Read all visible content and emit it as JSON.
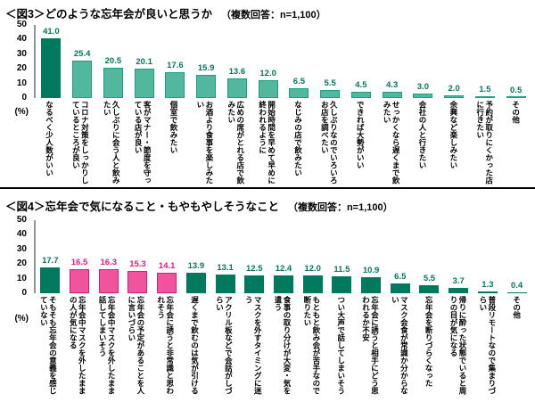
{
  "colors": {
    "bar_dark": "#007a5e",
    "bar_light_fill": "#52b89d",
    "bar_light_border": "#1b9e83",
    "bar_pink_fill": "#ef549c",
    "bar_pink_border": "#dd1979",
    "value_green": "#00795c",
    "value_pink": "#e91a80",
    "axis": "#8f9699",
    "divider": "#000000"
  },
  "chart_data": [
    {
      "id": "fig3",
      "type": "bar",
      "title": "＜図3＞どのような忘年会が良いと思うか",
      "note": "（複数回答：n=1,100）",
      "y_unit": "(%)",
      "ylim": [
        0,
        50
      ],
      "yticks": [
        50,
        40,
        30,
        20,
        10,
        0
      ],
      "grid": false,
      "legend_position": "none",
      "categories": [
        "なるべく少人数がいい",
        "コロナ対策をしっかりしているところが良い",
        "久しぶりに会う人と飲みたい",
        "客がマナー・節度を守っている店が良い",
        "個室で飲みたい",
        "お酒より食事を楽しみたい",
        "広めの席がとれる店で飲みたい",
        "開始時間を早めて早めに終われるように",
        "なじみの店で飲みたい",
        "久しぶりなのでいろいろお店を調べたい",
        "できれば大勢がいい",
        "せっかくなら遅くまで飲みたい",
        "会社の人と行きたい",
        "余興など楽しみたい",
        "予約が取りにくかった店に行きたい",
        "その他"
      ],
      "values": [
        41.0,
        25.4,
        20.5,
        20.1,
        17.6,
        15.9,
        13.6,
        12.0,
        6.5,
        5.5,
        4.5,
        4.3,
        3.0,
        2.0,
        1.5,
        0.5
      ],
      "bar_styles": [
        "dark",
        "light",
        "light",
        "light",
        "light",
        "light",
        "light",
        "light",
        "light",
        "light",
        "light",
        "light",
        "light",
        "light",
        "light",
        "light"
      ]
    },
    {
      "id": "fig4",
      "type": "bar",
      "title": "＜図4＞忘年会で気になること・もやもやしそうなこと",
      "note": "（複数回答：n=1,100）",
      "y_unit": "(%)",
      "ylim": [
        0,
        50
      ],
      "yticks": [
        50,
        40,
        30,
        20,
        10,
        0
      ],
      "grid": false,
      "legend_position": "none",
      "categories": [
        "そもそも忘年会の意義を感じていない",
        "忘年会中マスクを外したままの人が気になる",
        "忘年会中マスクを外したまま話してしまいそう",
        "忘年会の予定があることを人に言いづらい",
        "忘年会に誘うと非常識と思われそう",
        "遅くまで飲むのは気が引ける",
        "アクリル板などで会話がしづらい",
        "マスクを外すタイミングに迷う",
        "食事の取り分けが大変・気を遣う",
        "もともと飲み会が苦手なので断りたい",
        "つい大声で話してしまいそう",
        "忘年会に誘うと相手にどう思われるか不安",
        "マスク会食が常識か分からない",
        "忘年会を断りづらくなった",
        "帰りに酔った状態でいると周りの目が気になる",
        "普段リモートなので集まりづらい",
        "その他"
      ],
      "values": [
        17.7,
        16.5,
        16.3,
        15.3,
        14.1,
        13.9,
        13.1,
        12.5,
        12.4,
        12.0,
        11.5,
        10.9,
        6.5,
        5.5,
        3.7,
        1.3,
        0.4
      ],
      "bar_styles": [
        "dark",
        "pink",
        "pink",
        "pink",
        "pink",
        "dark",
        "dark",
        "dark",
        "dark",
        "dark",
        "dark",
        "dark",
        "dark",
        "dark",
        "dark",
        "dark",
        "dark"
      ]
    }
  ]
}
